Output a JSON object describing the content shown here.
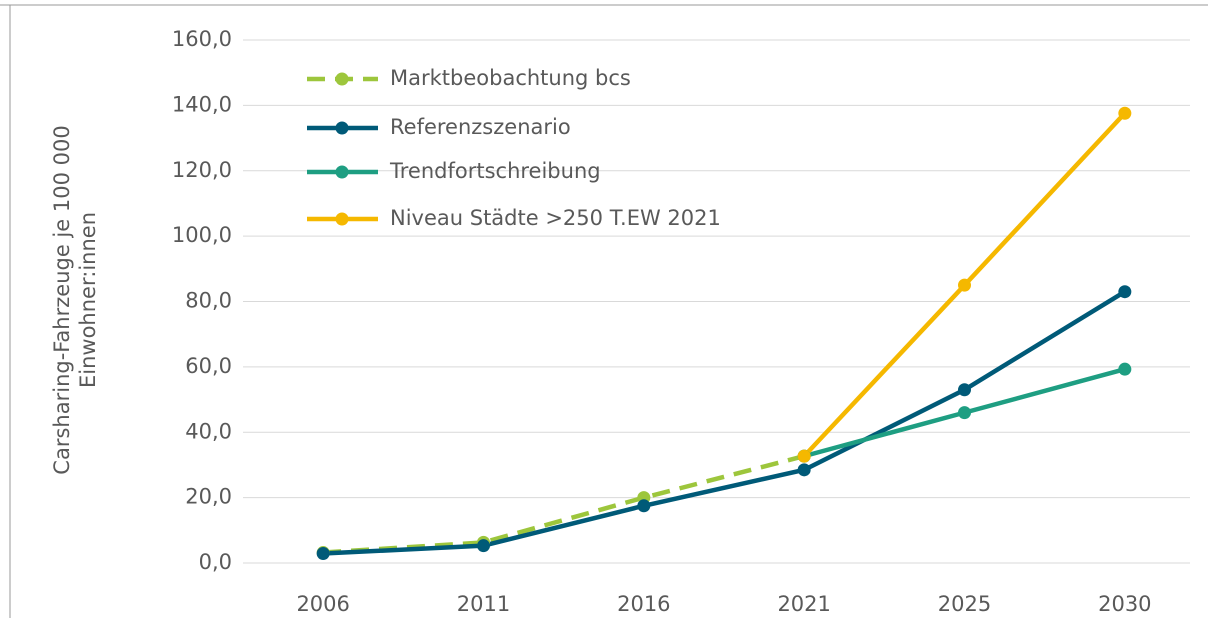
{
  "chart_data": {
    "type": "line",
    "ylabel": [
      "Carsharing-Fahrzeuge je 100 000",
      "Einwohner:innen"
    ],
    "categories": [
      "2006",
      "2011",
      "2016",
      "2021",
      "2025",
      "2030"
    ],
    "series": [
      {
        "name": "Marktbeobachtung bcs",
        "color": "#9dc63c",
        "dashed": true,
        "values": [
          3.2,
          6.3,
          20.0,
          32.7,
          null,
          null
        ]
      },
      {
        "name": "Referenzszenario",
        "color": "#005a78",
        "dashed": false,
        "values": [
          2.9,
          5.3,
          17.5,
          28.5,
          53.0,
          83.0
        ]
      },
      {
        "name": "Trendfortschreibung",
        "color": "#1e9e82",
        "dashed": false,
        "values": [
          null,
          null,
          null,
          32.7,
          46.0,
          59.3
        ]
      },
      {
        "name": "Niveau Städte >250 T.EW 2021",
        "color": "#f5b800",
        "dashed": false,
        "values": [
          null,
          null,
          null,
          32.7,
          85.0,
          137.6
        ]
      }
    ],
    "ylim": [
      0,
      160
    ],
    "yticks": [
      {
        "value": 0,
        "label": "0,0"
      },
      {
        "value": 20,
        "label": "20,0"
      },
      {
        "value": 40,
        "label": "40,0"
      },
      {
        "value": 60,
        "label": "60,0"
      },
      {
        "value": 80,
        "label": "80,0"
      },
      {
        "value": 100,
        "label": "100,0"
      },
      {
        "value": 120,
        "label": "120,0"
      },
      {
        "value": 140,
        "label": "140,0"
      },
      {
        "value": 160,
        "label": "160,0"
      }
    ],
    "grid": true,
    "legend": "top-left"
  }
}
